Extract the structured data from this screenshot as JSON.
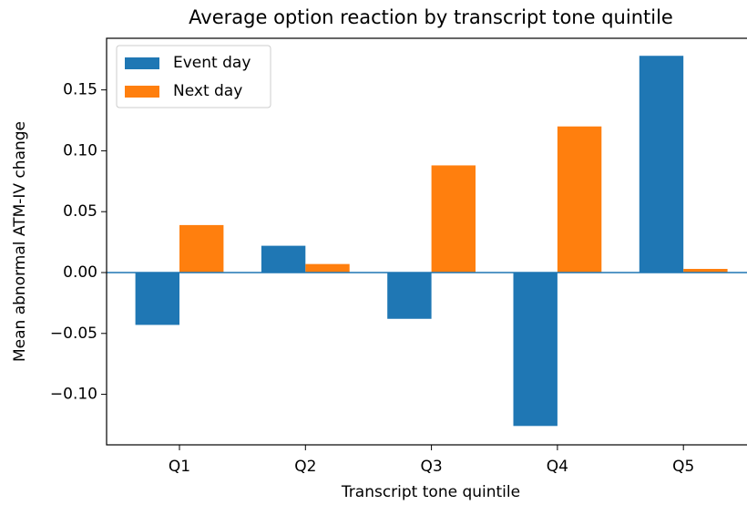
{
  "chart_data": {
    "type": "bar",
    "title": "Average option reaction by transcript tone quintile",
    "xlabel": "Transcript tone quintile",
    "ylabel": "Mean abnormal ATM-IV change",
    "categories": [
      "Q1",
      "Q2",
      "Q3",
      "Q4",
      "Q5"
    ],
    "series": [
      {
        "name": "Event day",
        "color": "#1f77b4",
        "values": [
          -0.043,
          0.022,
          -0.038,
          -0.126,
          0.178
        ]
      },
      {
        "name": "Next day",
        "color": "#ff7f0e",
        "values": [
          0.039,
          0.007,
          0.088,
          0.12,
          0.003
        ]
      }
    ],
    "ylim": [
      -0.1415,
      0.1924
    ],
    "yticks": [
      {
        "value": -0.1,
        "label": "−0.10"
      },
      {
        "value": -0.05,
        "label": "−0.05"
      },
      {
        "value": 0,
        "label": "0.00"
      },
      {
        "value": 0.05,
        "label": "0.05"
      },
      {
        "value": 0.1,
        "label": "0.10"
      },
      {
        "value": 0.15,
        "label": "0.15"
      }
    ],
    "axhline": {
      "value": 0,
      "color": "#1f77b4"
    },
    "legend": "upper left",
    "grid": false
  }
}
